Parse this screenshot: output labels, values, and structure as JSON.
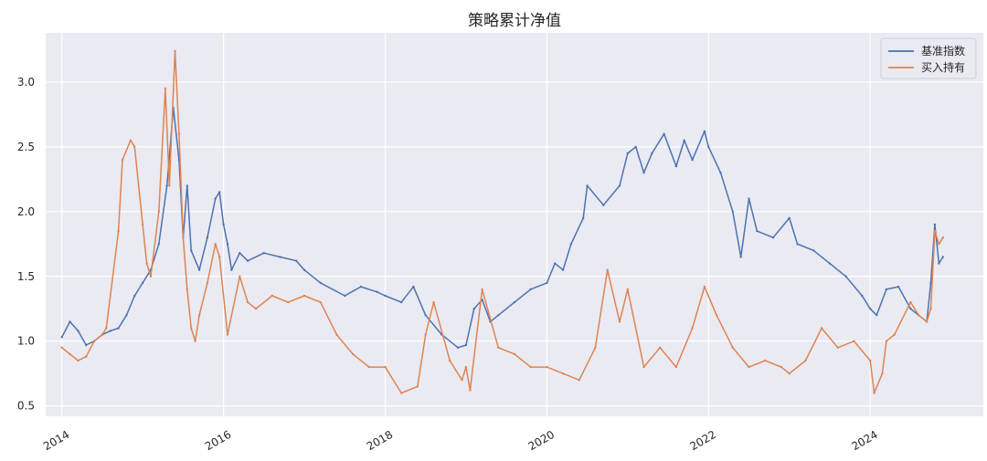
{
  "chart_data": {
    "type": "line",
    "title": "策略累计净值",
    "xlabel": "",
    "ylabel": "",
    "xlim": [
      2013.8,
      2025.4
    ],
    "ylim": [
      0.42,
      3.38
    ],
    "x_ticks": [
      2014,
      2016,
      2018,
      2020,
      2022,
      2024
    ],
    "y_ticks": [
      0.5,
      1.0,
      1.5,
      2.0,
      2.5,
      3.0
    ],
    "y_tick_labels": [
      "0.5",
      "1.0",
      "1.5",
      "2.0",
      "2.5",
      "3.0"
    ],
    "grid": true,
    "legend_position": "top-right",
    "series": [
      {
        "name": "基准指数",
        "color": "#4c72b0",
        "x": [
          2014.0,
          2014.1,
          2014.2,
          2014.3,
          2014.4,
          2014.5,
          2014.6,
          2014.7,
          2014.8,
          2014.9,
          2015.0,
          2015.1,
          2015.2,
          2015.3,
          2015.38,
          2015.45,
          2015.5,
          2015.55,
          2015.6,
          2015.7,
          2015.8,
          2015.9,
          2015.95,
          2016.0,
          2016.05,
          2016.1,
          2016.2,
          2016.3,
          2016.5,
          2016.7,
          2016.9,
          2017.0,
          2017.2,
          2017.5,
          2017.7,
          2017.9,
          2018.0,
          2018.2,
          2018.35,
          2018.5,
          2018.7,
          2018.9,
          2019.0,
          2019.1,
          2019.2,
          2019.3,
          2019.4,
          2019.6,
          2019.8,
          2020.0,
          2020.1,
          2020.2,
          2020.3,
          2020.45,
          2020.5,
          2020.7,
          2020.9,
          2021.0,
          2021.1,
          2021.2,
          2021.3,
          2021.45,
          2021.6,
          2021.7,
          2021.8,
          2021.95,
          2022.0,
          2022.15,
          2022.3,
          2022.4,
          2022.5,
          2022.6,
          2022.8,
          2023.0,
          2023.1,
          2023.3,
          2023.5,
          2023.7,
          2023.9,
          2024.0,
          2024.08,
          2024.2,
          2024.35,
          2024.5,
          2024.6,
          2024.7,
          2024.75,
          2024.8,
          2024.85,
          2024.9
        ],
        "values": [
          1.03,
          1.15,
          1.08,
          0.97,
          1.0,
          1.05,
          1.08,
          1.1,
          1.2,
          1.35,
          1.45,
          1.55,
          1.75,
          2.2,
          2.8,
          2.4,
          1.8,
          2.2,
          1.7,
          1.55,
          1.8,
          2.1,
          2.15,
          1.9,
          1.75,
          1.55,
          1.68,
          1.62,
          1.68,
          1.65,
          1.62,
          1.55,
          1.45,
          1.35,
          1.42,
          1.38,
          1.35,
          1.3,
          1.42,
          1.2,
          1.05,
          0.95,
          0.97,
          1.25,
          1.32,
          1.15,
          1.2,
          1.3,
          1.4,
          1.45,
          1.6,
          1.55,
          1.75,
          1.95,
          2.2,
          2.05,
          2.2,
          2.45,
          2.5,
          2.3,
          2.45,
          2.6,
          2.35,
          2.55,
          2.4,
          2.62,
          2.5,
          2.3,
          2.0,
          1.65,
          2.1,
          1.85,
          1.8,
          1.95,
          1.75,
          1.7,
          1.6,
          1.5,
          1.35,
          1.25,
          1.2,
          1.4,
          1.42,
          1.25,
          1.2,
          1.15,
          1.45,
          1.9,
          1.6,
          1.65
        ]
      },
      {
        "name": "买入持有",
        "color": "#dd8452",
        "x": [
          2014.0,
          2014.1,
          2014.2,
          2014.3,
          2014.4,
          2014.5,
          2014.55,
          2014.7,
          2014.75,
          2014.85,
          2014.9,
          2015.0,
          2015.05,
          2015.1,
          2015.2,
          2015.28,
          2015.33,
          2015.4,
          2015.45,
          2015.5,
          2015.55,
          2015.6,
          2015.65,
          2015.7,
          2015.8,
          2015.9,
          2015.95,
          2016.05,
          2016.2,
          2016.3,
          2016.4,
          2016.6,
          2016.8,
          2017.0,
          2017.2,
          2017.4,
          2017.6,
          2017.8,
          2018.0,
          2018.2,
          2018.4,
          2018.5,
          2018.6,
          2018.8,
          2018.95,
          2019.0,
          2019.05,
          2019.2,
          2019.4,
          2019.6,
          2019.8,
          2020.0,
          2020.2,
          2020.4,
          2020.6,
          2020.75,
          2020.9,
          2021.0,
          2021.2,
          2021.4,
          2021.6,
          2021.8,
          2021.95,
          2022.1,
          2022.3,
          2022.5,
          2022.7,
          2022.9,
          2023.0,
          2023.2,
          2023.4,
          2023.6,
          2023.8,
          2024.0,
          2024.05,
          2024.15,
          2024.2,
          2024.3,
          2024.5,
          2024.6,
          2024.7,
          2024.75,
          2024.8,
          2024.85,
          2024.9
        ],
        "values": [
          0.95,
          0.9,
          0.85,
          0.88,
          1.0,
          1.05,
          1.1,
          1.85,
          2.4,
          2.55,
          2.5,
          1.9,
          1.6,
          1.5,
          2.0,
          2.95,
          2.2,
          3.24,
          2.6,
          1.8,
          1.4,
          1.1,
          1.0,
          1.2,
          1.45,
          1.75,
          1.65,
          1.05,
          1.5,
          1.3,
          1.25,
          1.35,
          1.3,
          1.35,
          1.3,
          1.05,
          0.9,
          0.8,
          0.8,
          0.6,
          0.65,
          1.05,
          1.3,
          0.85,
          0.7,
          0.8,
          0.62,
          1.4,
          0.95,
          0.9,
          0.8,
          0.8,
          0.75,
          0.7,
          0.95,
          1.55,
          1.15,
          1.4,
          0.8,
          0.95,
          0.8,
          1.1,
          1.42,
          1.2,
          0.95,
          0.8,
          0.85,
          0.8,
          0.75,
          0.85,
          1.1,
          0.95,
          1.0,
          0.85,
          0.6,
          0.75,
          1.0,
          1.05,
          1.3,
          1.2,
          1.15,
          1.25,
          1.85,
          1.75,
          1.8
        ]
      }
    ]
  }
}
